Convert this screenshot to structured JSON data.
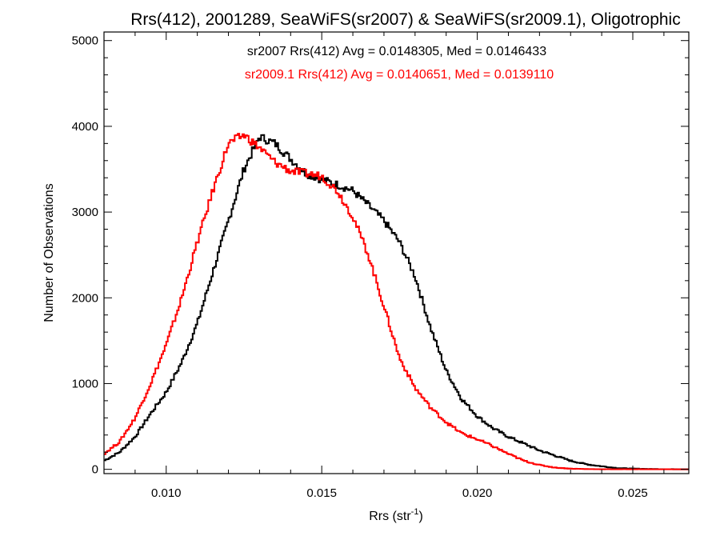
{
  "chart_data": {
    "type": "line",
    "step": true,
    "title": "Rrs(412), 2001289, SeaWiFS(sr2007) & SeaWiFS(sr2009.1), Oligotrophic",
    "xlabel_main": "Rrs (str",
    "xlabel_sup": "-1",
    "xlabel_end": ")",
    "ylabel": "Number of Observations",
    "xlim": [
      0.008,
      0.0268
    ],
    "ylim": [
      -50,
      5100
    ],
    "xticks": [
      0.01,
      0.015,
      0.02,
      0.025
    ],
    "xtick_labels": [
      "0.010",
      "0.015",
      "0.020",
      "0.025"
    ],
    "yticks": [
      0,
      1000,
      2000,
      3000,
      4000,
      5000
    ],
    "ytick_labels": [
      "0",
      "1000",
      "2000",
      "3000",
      "4000",
      "5000"
    ],
    "annotations": [
      {
        "text": "sr2007 Rrs(412) Avg = 0.0148305, Med = 0.0146433",
        "color": "#000000"
      },
      {
        "text": "sr2009.1 Rrs(412) Avg = 0.0140651, Med = 0.0139110",
        "color": "#ff0000"
      }
    ],
    "series": [
      {
        "color": "#000000",
        "points": [
          [
            0.008,
            100
          ],
          [
            0.0085,
            200
          ],
          [
            0.009,
            380
          ],
          [
            0.0095,
            650
          ],
          [
            0.01,
            900
          ],
          [
            0.0105,
            1250
          ],
          [
            0.011,
            1700
          ],
          [
            0.0115,
            2300
          ],
          [
            0.012,
            2900
          ],
          [
            0.0125,
            3500
          ],
          [
            0.013,
            3880
          ],
          [
            0.0135,
            3800
          ],
          [
            0.014,
            3620
          ],
          [
            0.0145,
            3450
          ],
          [
            0.015,
            3380
          ],
          [
            0.0155,
            3320
          ],
          [
            0.016,
            3250
          ],
          [
            0.0165,
            3080
          ],
          [
            0.017,
            2900
          ],
          [
            0.0175,
            2650
          ],
          [
            0.018,
            2250
          ],
          [
            0.0185,
            1650
          ],
          [
            0.019,
            1150
          ],
          [
            0.0195,
            820
          ],
          [
            0.02,
            620
          ],
          [
            0.0205,
            480
          ],
          [
            0.021,
            380
          ],
          [
            0.0215,
            300
          ],
          [
            0.022,
            220
          ],
          [
            0.0225,
            160
          ],
          [
            0.023,
            100
          ],
          [
            0.0235,
            60
          ],
          [
            0.024,
            35
          ],
          [
            0.0245,
            15
          ],
          [
            0.025,
            8
          ],
          [
            0.0255,
            4
          ],
          [
            0.026,
            2
          ],
          [
            0.0268,
            0
          ]
        ]
      },
      {
        "color": "#ff0000",
        "points": [
          [
            0.008,
            180
          ],
          [
            0.0085,
            320
          ],
          [
            0.009,
            600
          ],
          [
            0.0095,
            1000
          ],
          [
            0.01,
            1450
          ],
          [
            0.0105,
            2000
          ],
          [
            0.011,
            2650
          ],
          [
            0.0115,
            3250
          ],
          [
            0.012,
            3800
          ],
          [
            0.0125,
            3900
          ],
          [
            0.013,
            3750
          ],
          [
            0.0135,
            3580
          ],
          [
            0.014,
            3480
          ],
          [
            0.0145,
            3450
          ],
          [
            0.015,
            3420
          ],
          [
            0.0155,
            3250
          ],
          [
            0.016,
            2950
          ],
          [
            0.0165,
            2500
          ],
          [
            0.017,
            1900
          ],
          [
            0.0175,
            1300
          ],
          [
            0.018,
            950
          ],
          [
            0.0185,
            720
          ],
          [
            0.019,
            550
          ],
          [
            0.0195,
            420
          ],
          [
            0.02,
            350
          ],
          [
            0.0205,
            270
          ],
          [
            0.021,
            180
          ],
          [
            0.0215,
            100
          ],
          [
            0.022,
            50
          ],
          [
            0.0225,
            20
          ],
          [
            0.023,
            8
          ],
          [
            0.0235,
            3
          ],
          [
            0.024,
            1
          ],
          [
            0.0268,
            0
          ]
        ]
      }
    ]
  }
}
